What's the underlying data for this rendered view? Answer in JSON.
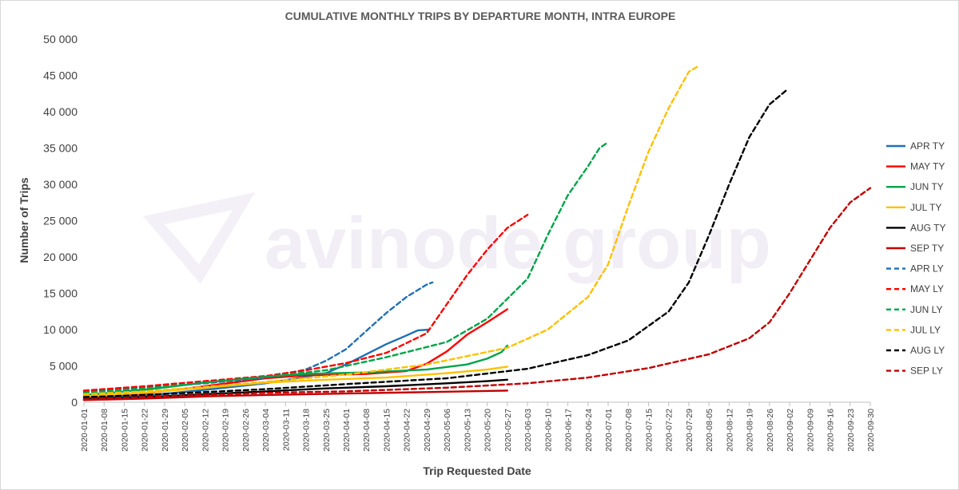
{
  "chart_data": {
    "type": "line",
    "title": "CUMULATIVE MONTHLY TRIPS BY DEPARTURE MONTH, INTRA EUROPE",
    "xlabel": "Trip Requested Date",
    "ylabel": "Number of Trips",
    "ylim": [
      0,
      50000
    ],
    "yticks": [
      0,
      5000,
      10000,
      15000,
      20000,
      25000,
      30000,
      35000,
      40000,
      45000,
      50000
    ],
    "ytick_labels": [
      "0",
      "5 000",
      "10 000",
      "15 000",
      "20 000",
      "25 000",
      "30 000",
      "35 000",
      "40 000",
      "45 000",
      "50 000"
    ],
    "xlim": [
      "2020-01-01",
      "2020-09-30"
    ],
    "x_tick_labels": [
      "2020-01-01",
      "2020-01-08",
      "2020-01-15",
      "2020-01-22",
      "2020-01-29",
      "2020-02-05",
      "2020-02-12",
      "2020-02-19",
      "2020-02-26",
      "2020-03-04",
      "2020-03-11",
      "2020-03-18",
      "2020-03-25",
      "2020-04-01",
      "2020-04-08",
      "2020-04-15",
      "2020-04-22",
      "2020-04-29",
      "2020-05-06",
      "2020-05-13",
      "2020-05-20",
      "2020-05-27",
      "2020-06-03",
      "2020-06-10",
      "2020-06-17",
      "2020-06-24",
      "2020-07-01",
      "2020-07-08",
      "2020-07-15",
      "2020-07-22",
      "2020-07-29",
      "2020-08-05",
      "2020-08-12",
      "2020-08-19",
      "2020-08-26",
      "2020-09-02",
      "2020-09-09",
      "2020-09-16",
      "2020-09-23",
      "2020-09-30"
    ],
    "grid": false,
    "legend_position": "right",
    "watermark": "avinode group",
    "series": [
      {
        "name": "APR TY",
        "color": "#1f6fb4",
        "dash": false,
        "points": [
          [
            "2020-01-01",
            500
          ],
          [
            "2020-01-22",
            900
          ],
          [
            "2020-02-12",
            1700
          ],
          [
            "2020-03-04",
            2600
          ],
          [
            "2020-03-18",
            3500
          ],
          [
            "2020-03-25",
            4000
          ],
          [
            "2020-04-01",
            5200
          ],
          [
            "2020-04-08",
            6600
          ],
          [
            "2020-04-15",
            8000
          ],
          [
            "2020-04-22",
            9200
          ],
          [
            "2020-04-26",
            9900
          ],
          [
            "2020-04-30",
            10000
          ]
        ]
      },
      {
        "name": "MAY TY",
        "color": "#ff0000",
        "dash": false,
        "points": [
          [
            "2020-01-01",
            700
          ],
          [
            "2020-01-22",
            1200
          ],
          [
            "2020-02-12",
            2200
          ],
          [
            "2020-03-04",
            3300
          ],
          [
            "2020-03-18",
            3700
          ],
          [
            "2020-04-08",
            3900
          ],
          [
            "2020-04-22",
            4300
          ],
          [
            "2020-04-29",
            5300
          ],
          [
            "2020-05-06",
            7000
          ],
          [
            "2020-05-13",
            9300
          ],
          [
            "2020-05-20",
            11000
          ],
          [
            "2020-05-27",
            12800
          ]
        ]
      },
      {
        "name": "JUN TY",
        "color": "#00a44a",
        "dash": false,
        "points": [
          [
            "2020-01-01",
            1000
          ],
          [
            "2020-01-22",
            1700
          ],
          [
            "2020-02-12",
            2700
          ],
          [
            "2020-03-04",
            3500
          ],
          [
            "2020-03-18",
            3900
          ],
          [
            "2020-04-08",
            4100
          ],
          [
            "2020-04-29",
            4500
          ],
          [
            "2020-05-13",
            5200
          ],
          [
            "2020-05-20",
            6000
          ],
          [
            "2020-05-25",
            6900
          ],
          [
            "2020-05-27",
            7800
          ]
        ]
      },
      {
        "name": "JUL TY",
        "color": "#ffc000",
        "dash": false,
        "points": [
          [
            "2020-01-01",
            800
          ],
          [
            "2020-01-22",
            1300
          ],
          [
            "2020-02-12",
            2000
          ],
          [
            "2020-03-04",
            2700
          ],
          [
            "2020-03-25",
            3100
          ],
          [
            "2020-04-15",
            3400
          ],
          [
            "2020-05-06",
            4000
          ],
          [
            "2020-05-20",
            4500
          ],
          [
            "2020-05-27",
            4900
          ]
        ]
      },
      {
        "name": "AUG TY",
        "color": "#000000",
        "dash": false,
        "points": [
          [
            "2020-01-01",
            400
          ],
          [
            "2020-01-22",
            700
          ],
          [
            "2020-02-12",
            1100
          ],
          [
            "2020-03-04",
            1500
          ],
          [
            "2020-03-25",
            1900
          ],
          [
            "2020-04-15",
            2200
          ],
          [
            "2020-05-06",
            2600
          ],
          [
            "2020-05-20",
            2900
          ],
          [
            "2020-05-27",
            3100
          ]
        ]
      },
      {
        "name": "SEP TY",
        "color": "#c00000",
        "dash": false,
        "points": [
          [
            "2020-01-01",
            300
          ],
          [
            "2020-01-22",
            500
          ],
          [
            "2020-02-12",
            800
          ],
          [
            "2020-03-04",
            1000
          ],
          [
            "2020-04-01",
            1200
          ],
          [
            "2020-04-29",
            1400
          ],
          [
            "2020-05-27",
            1600
          ]
        ]
      },
      {
        "name": "APR LY",
        "color": "#1f6fb4",
        "dash": true,
        "points": [
          [
            "2020-01-01",
            1500
          ],
          [
            "2020-01-22",
            2000
          ],
          [
            "2020-02-12",
            2600
          ],
          [
            "2020-03-04",
            3400
          ],
          [
            "2020-03-18",
            4500
          ],
          [
            "2020-03-25",
            5700
          ],
          [
            "2020-04-01",
            7300
          ],
          [
            "2020-04-08",
            9800
          ],
          [
            "2020-04-15",
            12300
          ],
          [
            "2020-04-22",
            14500
          ],
          [
            "2020-04-29",
            16200
          ],
          [
            "2020-05-01",
            16500
          ]
        ]
      },
      {
        "name": "MAY LY",
        "color": "#ff0000",
        "dash": true,
        "points": [
          [
            "2020-01-01",
            1600
          ],
          [
            "2020-01-22",
            2200
          ],
          [
            "2020-02-12",
            2900
          ],
          [
            "2020-03-04",
            3600
          ],
          [
            "2020-03-18",
            4400
          ],
          [
            "2020-04-01",
            5400
          ],
          [
            "2020-04-15",
            6800
          ],
          [
            "2020-04-29",
            9500
          ],
          [
            "2020-05-06",
            13500
          ],
          [
            "2020-05-13",
            17500
          ],
          [
            "2020-05-20",
            21000
          ],
          [
            "2020-05-27",
            24000
          ],
          [
            "2020-06-03",
            25800
          ]
        ]
      },
      {
        "name": "JUN LY",
        "color": "#00a44a",
        "dash": true,
        "points": [
          [
            "2020-01-01",
            1300
          ],
          [
            "2020-01-22",
            1900
          ],
          [
            "2020-02-12",
            2700
          ],
          [
            "2020-03-04",
            3500
          ],
          [
            "2020-03-25",
            4400
          ],
          [
            "2020-04-15",
            6200
          ],
          [
            "2020-05-06",
            8300
          ],
          [
            "2020-05-20",
            11500
          ],
          [
            "2020-06-03",
            17000
          ],
          [
            "2020-06-10",
            23000
          ],
          [
            "2020-06-17",
            28500
          ],
          [
            "2020-06-24",
            32500
          ],
          [
            "2020-06-28",
            35000
          ],
          [
            "2020-07-01",
            35800
          ]
        ]
      },
      {
        "name": "JUL LY",
        "color": "#ffc000",
        "dash": true,
        "points": [
          [
            "2020-01-01",
            1100
          ],
          [
            "2020-01-22",
            1500
          ],
          [
            "2020-02-12",
            2100
          ],
          [
            "2020-03-04",
            2800
          ],
          [
            "2020-04-01",
            3800
          ],
          [
            "2020-04-29",
            5200
          ],
          [
            "2020-05-27",
            7500
          ],
          [
            "2020-06-10",
            10000
          ],
          [
            "2020-06-24",
            14500
          ],
          [
            "2020-07-01",
            19000
          ],
          [
            "2020-07-08",
            27000
          ],
          [
            "2020-07-15",
            34500
          ],
          [
            "2020-07-22",
            40500
          ],
          [
            "2020-07-29",
            45500
          ],
          [
            "2020-08-01",
            46200
          ]
        ]
      },
      {
        "name": "AUG LY",
        "color": "#000000",
        "dash": true,
        "points": [
          [
            "2020-01-01",
            700
          ],
          [
            "2020-01-22",
            1000
          ],
          [
            "2020-02-12",
            1400
          ],
          [
            "2020-03-04",
            1800
          ],
          [
            "2020-04-01",
            2500
          ],
          [
            "2020-05-06",
            3300
          ],
          [
            "2020-06-03",
            4600
          ],
          [
            "2020-06-24",
            6500
          ],
          [
            "2020-07-08",
            8500
          ],
          [
            "2020-07-22",
            12500
          ],
          [
            "2020-07-29",
            16500
          ],
          [
            "2020-08-05",
            23000
          ],
          [
            "2020-08-12",
            30000
          ],
          [
            "2020-08-19",
            36500
          ],
          [
            "2020-08-26",
            41000
          ],
          [
            "2020-09-01",
            43000
          ]
        ]
      },
      {
        "name": "SEP LY",
        "color": "#c00000",
        "dash": true,
        "points": [
          [
            "2020-01-01",
            400
          ],
          [
            "2020-01-22",
            700
          ],
          [
            "2020-02-12",
            1000
          ],
          [
            "2020-03-04",
            1300
          ],
          [
            "2020-04-01",
            1500
          ],
          [
            "2020-05-06",
            2000
          ],
          [
            "2020-06-03",
            2600
          ],
          [
            "2020-06-24",
            3400
          ],
          [
            "2020-07-15",
            4700
          ],
          [
            "2020-08-05",
            6600
          ],
          [
            "2020-08-19",
            8800
          ],
          [
            "2020-08-26",
            11000
          ],
          [
            "2020-09-02",
            15000
          ],
          [
            "2020-09-09",
            19500
          ],
          [
            "2020-09-16",
            24000
          ],
          [
            "2020-09-23",
            27500
          ],
          [
            "2020-09-30",
            29500
          ]
        ]
      }
    ]
  }
}
